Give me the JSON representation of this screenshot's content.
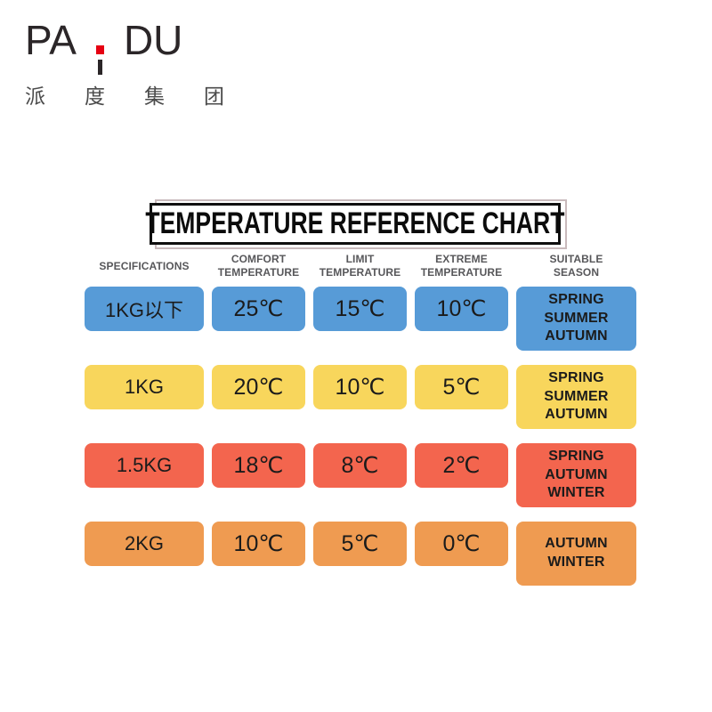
{
  "brand": {
    "name": "PAIDU",
    "name_left": "PA",
    "name_right": "DU",
    "logo_dot_color": "#e60012",
    "chinese_chars": [
      "派",
      "度",
      "集",
      "团"
    ]
  },
  "title": "TEMPERATURE REFERENCE CHART",
  "table": {
    "headers": [
      [
        "SPECIFICATIONS"
      ],
      [
        "COMFORT",
        "TEMPERATURE"
      ],
      [
        "LIMIT",
        "TEMPERATURE"
      ],
      [
        "EXTREME",
        "TEMPERATURE"
      ],
      [
        "SUITABLE",
        "SEASON"
      ]
    ],
    "rows": [
      {
        "color": "#579bd7",
        "specification": "1KG以下",
        "comfort": "25℃",
        "limit": "15℃",
        "extreme": "10℃",
        "seasons": [
          "SPRING",
          "SUMMER",
          "AUTUMN"
        ]
      },
      {
        "color": "#f8d65c",
        "specification": "1KG",
        "comfort": "20℃",
        "limit": "10℃",
        "extreme": "5℃",
        "seasons": [
          "SPRING",
          "SUMMER",
          "AUTUMN"
        ]
      },
      {
        "color": "#f3654e",
        "specification": "1.5KG",
        "comfort": "18℃",
        "limit": "8℃",
        "extreme": "2℃",
        "seasons": [
          "SPRING",
          "AUTUMN",
          "WINTER"
        ]
      },
      {
        "color": "#ef9b51",
        "specification": "2KG",
        "comfort": "10℃",
        "limit": "5℃",
        "extreme": "0℃",
        "seasons": [
          "AUTUMN",
          "WINTER"
        ]
      }
    ]
  },
  "chart_data": {
    "type": "table",
    "title": "TEMPERATURE REFERENCE CHART",
    "columns": [
      "SPECIFICATIONS",
      "COMFORT TEMPERATURE",
      "LIMIT TEMPERATURE",
      "EXTREME TEMPERATURE",
      "SUITABLE SEASON"
    ],
    "rows": [
      [
        "1KG以下",
        "25℃",
        "15℃",
        "10℃",
        "SPRING SUMMER AUTUMN"
      ],
      [
        "1KG",
        "20℃",
        "10℃",
        "5℃",
        "SPRING SUMMER AUTUMN"
      ],
      [
        "1.5KG",
        "18℃",
        "8℃",
        "2℃",
        "SPRING AUTUMN WINTER"
      ],
      [
        "2KG",
        "10℃",
        "5℃",
        "0℃",
        "AUTUMN WINTER"
      ]
    ],
    "row_colors": [
      "#579bd7",
      "#f8d65c",
      "#f3654e",
      "#ef9b51"
    ]
  }
}
